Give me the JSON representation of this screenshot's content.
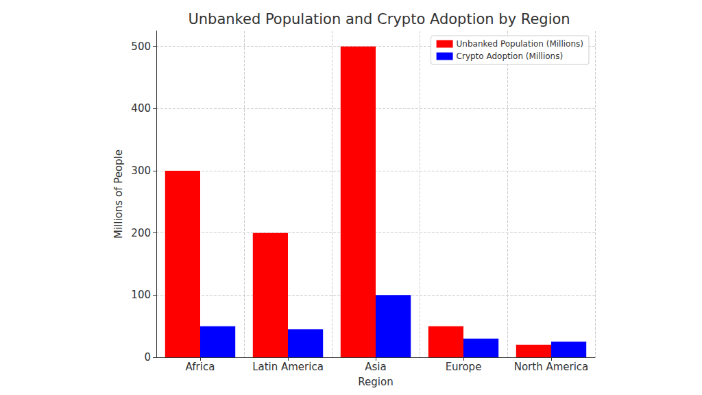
{
  "chart_data": {
    "type": "bar",
    "title": "Unbanked Population and Crypto Adoption by Region",
    "x_label": "Region",
    "y_label": "Millions of People",
    "categories": [
      "Africa",
      "Latin America",
      "Asia",
      "Europe",
      "North America"
    ],
    "series": [
      {
        "name": "Unbanked Population (Millions)",
        "color": "#ff0000",
        "values": [
          300,
          200,
          500,
          50,
          20
        ]
      },
      {
        "name": "Crypto Adoption (Millions)",
        "color": "#0000ff",
        "values": [
          50,
          45,
          100,
          30,
          25
        ]
      }
    ],
    "ylim": [
      0,
      525
    ],
    "yticks": [
      0,
      100,
      200,
      300,
      400,
      500
    ],
    "grid": true,
    "legend": "upper right"
  }
}
